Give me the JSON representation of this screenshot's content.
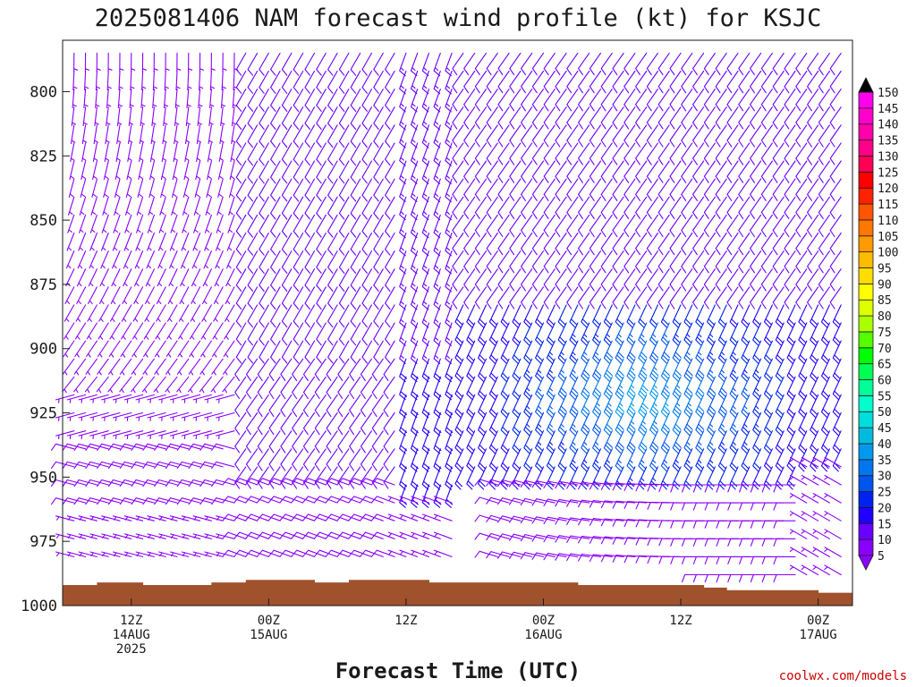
{
  "title": "2025081406 NAM forecast wind profile (kt) for KSJC",
  "credit": "coolwx.com/models",
  "chart_data": {
    "type": "wind-barb profile",
    "title": "2025081406 NAM forecast wind profile (kt) for KSJC",
    "xlabel": "Forecast Time (UTC)",
    "ylabel": "",
    "units": "kt",
    "y_axis": {
      "range": [
        780,
        1000
      ],
      "ticks": [
        800,
        825,
        850,
        875,
        900,
        925,
        950,
        975,
        1000
      ],
      "labels": [
        "800",
        "825",
        "850",
        "875",
        "900",
        "925",
        "950",
        "975",
        "1000"
      ]
    },
    "x_axis": {
      "range_hours": [
        6,
        75
      ],
      "ticks": [
        {
          "h": 12,
          "line1": "12Z",
          "line2": "14AUG",
          "line3": "2025"
        },
        {
          "h": 24,
          "line1": "00Z",
          "line2": "15AUG",
          "line3": ""
        },
        {
          "h": 36,
          "line1": "12Z",
          "line2": "",
          "line3": ""
        },
        {
          "h": 48,
          "line1": "00Z",
          "line2": "16AUG",
          "line3": ""
        },
        {
          "h": 60,
          "line1": "12Z",
          "line2": "",
          "line3": ""
        },
        {
          "h": 72,
          "line1": "00Z",
          "line2": "17AUG",
          "line3": ""
        },
        {
          "h": 84,
          "line1": "12Z",
          "line2": "",
          "line3": ""
        }
      ]
    },
    "colorbar": {
      "levels": [
        5,
        10,
        15,
        20,
        25,
        30,
        35,
        40,
        45,
        50,
        55,
        60,
        65,
        70,
        75,
        80,
        85,
        90,
        95,
        100,
        105,
        110,
        115,
        120,
        125,
        130,
        135,
        140,
        145,
        150
      ],
      "colors": [
        "#8a00ff",
        "#6a00ff",
        "#2200ff",
        "#0022ee",
        "#0055ee",
        "#0077ee",
        "#0099ee",
        "#00bbdd",
        "#00dddd",
        "#00ffcc",
        "#00ff99",
        "#00ff55",
        "#00ff00",
        "#55ff00",
        "#aaff00",
        "#ddff00",
        "#ffff00",
        "#ffdd00",
        "#ffbb00",
        "#ff9900",
        "#ff7700",
        "#ff5500",
        "#ff2200",
        "#ff0000",
        "#ff0055",
        "#ff0088",
        "#ff00aa",
        "#ff00cc",
        "#ff00ee",
        "#000000"
      ]
    },
    "ground": [
      {
        "t0": 6,
        "t1": 9,
        "p": 992
      },
      {
        "t0": 9,
        "t1": 13,
        "p": 991
      },
      {
        "t0": 13,
        "t1": 19,
        "p": 992
      },
      {
        "t0": 19,
        "t1": 22,
        "p": 991
      },
      {
        "t0": 22,
        "t1": 28,
        "p": 990
      },
      {
        "t0": 28,
        "t1": 31,
        "p": 991
      },
      {
        "t0": 31,
        "t1": 38,
        "p": 990
      },
      {
        "t0": 38,
        "t1": 51,
        "p": 991
      },
      {
        "t0": 51,
        "t1": 62,
        "p": 992
      },
      {
        "t0": 62,
        "t1": 64,
        "p": 993
      },
      {
        "t0": 64,
        "t1": 67,
        "p": 994
      },
      {
        "t0": 67,
        "t1": 72,
        "p": 994
      },
      {
        "t0": 72,
        "t1": 75,
        "p": 995
      }
    ],
    "wind_field": {
      "description": "Wind barbs every 1 h at ~7 hPa intervals; speeds 5-45 kt",
      "speed_range_kt": [
        5,
        45
      ],
      "max_speed_region": {
        "time_h_range": [
          48,
          66
        ],
        "pressure_range_hPa": [
          870,
          945
        ],
        "speed_kt": 40
      }
    }
  }
}
